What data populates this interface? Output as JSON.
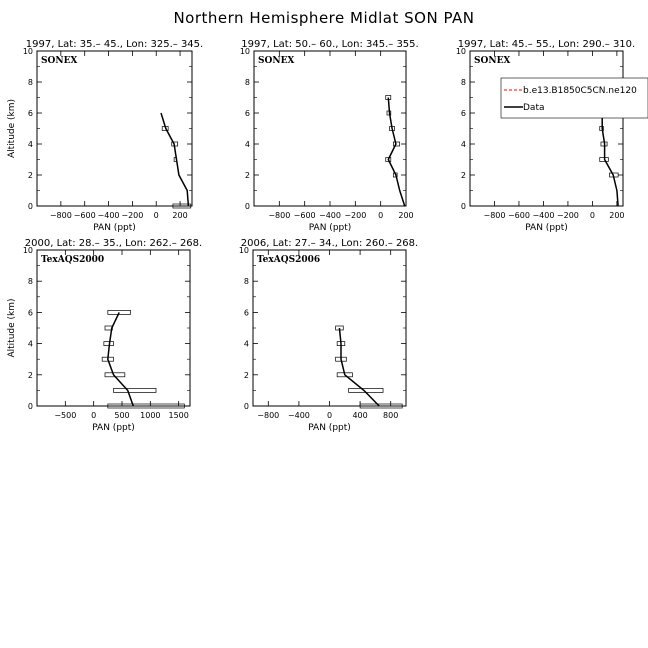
{
  "figure": {
    "title": "Northern Hemisphere Midlat SON PAN"
  },
  "legend": {
    "items": [
      {
        "label": "b.e13.B1850C5CN.ne120",
        "color": "#ff0000",
        "style": "dashed"
      },
      {
        "label": "Data",
        "color": "#000000",
        "style": "solid"
      }
    ]
  },
  "chart_data": [
    {
      "type": "line",
      "title": "1997, Lat: 35.– 45., Lon: 325.– 345.",
      "campaign": "SONEX",
      "xlabel": "PAN (ppt)",
      "ylabel": "Altitude (km)",
      "xlim": [
        -1000,
        300
      ],
      "ylim": [
        0,
        10
      ],
      "xticks": [
        -800,
        -600,
        -400,
        -200,
        0,
        200
      ],
      "xtick_labels": [
        "−800",
        "−600",
        "−400",
        "−200",
        "0",
        "200"
      ],
      "yticks": [
        0,
        2,
        4,
        6,
        8,
        10
      ],
      "show_legend": false,
      "series": [
        {
          "name": "Data",
          "points": [
            [
              270,
              0
            ],
            [
              260,
              1
            ],
            [
              190,
              2
            ],
            [
              170,
              3
            ],
            [
              150,
              4
            ],
            [
              80,
              5
            ],
            [
              40,
              6
            ]
          ]
        }
      ],
      "boxes": [
        {
          "y": 0,
          "x0": 140,
          "x1": 290
        },
        {
          "y": 3,
          "x0": 150,
          "x1": 170
        },
        {
          "y": 4,
          "x0": 130,
          "x1": 180
        },
        {
          "y": 5,
          "x0": 50,
          "x1": 100
        }
      ]
    },
    {
      "type": "line",
      "title": "1997, Lat: 50.– 60., Lon: 345.– 355.",
      "campaign": "SONEX",
      "xlabel": "PAN (ppt)",
      "ylabel": "",
      "xlim": [
        -1000,
        200
      ],
      "ylim": [
        0,
        10
      ],
      "xticks": [
        -800,
        -600,
        -400,
        -200,
        0,
        200
      ],
      "xtick_labels": [
        "−800",
        "−600",
        "−400",
        "−200",
        "0",
        "200"
      ],
      "yticks": [
        0,
        2,
        4,
        6,
        8,
        10
      ],
      "show_legend": false,
      "series": [
        {
          "name": "Data",
          "points": [
            [
              190,
              0
            ],
            [
              150,
              1
            ],
            [
              120,
              2
            ],
            [
              60,
              3
            ],
            [
              120,
              4
            ],
            [
              90,
              5
            ],
            [
              70,
              6
            ],
            [
              60,
              7
            ]
          ]
        }
      ],
      "boxes": [
        {
          "y": 2,
          "x0": 100,
          "x1": 130
        },
        {
          "y": 3,
          "x0": 40,
          "x1": 80
        },
        {
          "y": 4,
          "x0": 100,
          "x1": 150
        },
        {
          "y": 5,
          "x0": 70,
          "x1": 110
        },
        {
          "y": 6,
          "x0": 50,
          "x1": 80
        },
        {
          "y": 7,
          "x0": 40,
          "x1": 80
        }
      ]
    },
    {
      "type": "line",
      "title": "1997, Lat: 45.– 55., Lon: 290.– 310.",
      "campaign": "SONEX",
      "xlabel": "PAN (ppt)",
      "ylabel": "",
      "xlim": [
        -1000,
        250
      ],
      "ylim": [
        0,
        10
      ],
      "xticks": [
        -800,
        -600,
        -400,
        -200,
        0,
        200
      ],
      "xtick_labels": [
        "−800",
        "−600",
        "−400",
        "−200",
        "0",
        "200"
      ],
      "yticks": [
        0,
        2,
        4,
        6,
        8,
        10
      ],
      "show_legend": true,
      "series": [
        {
          "name": "Data",
          "points": [
            [
              210,
              0
            ],
            [
              200,
              1
            ],
            [
              170,
              2
            ],
            [
              100,
              3
            ],
            [
              100,
              4
            ],
            [
              80,
              5
            ],
            [
              80,
              6
            ],
            [
              70,
              7
            ],
            [
              70,
              8
            ]
          ]
        }
      ],
      "boxes": [
        {
          "y": 2,
          "x0": 140,
          "x1": 210
        },
        {
          "y": 3,
          "x0": 60,
          "x1": 130
        },
        {
          "y": 4,
          "x0": 70,
          "x1": 120
        },
        {
          "y": 5,
          "x0": 60,
          "x1": 90
        },
        {
          "y": 6,
          "x0": 50,
          "x1": 100
        },
        {
          "y": 7,
          "x0": 50,
          "x1": 90
        },
        {
          "y": 8,
          "x0": 50,
          "x1": 90
        }
      ]
    },
    {
      "type": "line",
      "title": "2000, Lat: 28.– 35., Lon: 262.– 268.",
      "campaign": "TexAQS2000",
      "xlabel": "PAN (ppt)",
      "ylabel": "Altitude (km)",
      "xlim": [
        -1000,
        1700
      ],
      "ylim": [
        0,
        10
      ],
      "xticks": [
        -500,
        0,
        500,
        1000,
        1500
      ],
      "xtick_labels": [
        "−500",
        "0",
        "500",
        "1000",
        "1500"
      ],
      "yticks": [
        0,
        2,
        4,
        6,
        8,
        10
      ],
      "show_legend": false,
      "series": [
        {
          "name": "Data",
          "points": [
            [
              700,
              0
            ],
            [
              600,
              1
            ],
            [
              350,
              2
            ],
            [
              250,
              3
            ],
            [
              280,
              4
            ],
            [
              320,
              5
            ],
            [
              450,
              6
            ]
          ]
        }
      ],
      "boxes": [
        {
          "y": 0,
          "x0": 250,
          "x1": 1600
        },
        {
          "y": 1,
          "x0": 350,
          "x1": 1100
        },
        {
          "y": 2,
          "x0": 200,
          "x1": 550
        },
        {
          "y": 3,
          "x0": 150,
          "x1": 350
        },
        {
          "y": 4,
          "x0": 180,
          "x1": 350
        },
        {
          "y": 5,
          "x0": 200,
          "x1": 330
        },
        {
          "y": 6,
          "x0": 250,
          "x1": 650
        }
      ]
    },
    {
      "type": "line",
      "title": "2006, Lat: 27.– 34., Lon: 260.– 268.",
      "campaign": "TexAQS2006",
      "xlabel": "PAN (ppt)",
      "ylabel": "",
      "xlim": [
        -1000,
        1000
      ],
      "ylim": [
        0,
        10
      ],
      "xticks": [
        -800,
        -400,
        0,
        400,
        800
      ],
      "xtick_labels": [
        "−800",
        "−400",
        "0",
        "400",
        "800"
      ],
      "yticks": [
        0,
        2,
        4,
        6,
        8,
        10
      ],
      "show_legend": false,
      "series": [
        {
          "name": "Data",
          "points": [
            [
              650,
              0
            ],
            [
              450,
              1
            ],
            [
              200,
              2
            ],
            [
              150,
              3
            ],
            [
              150,
              4
            ],
            [
              130,
              5
            ]
          ]
        }
      ],
      "boxes": [
        {
          "y": 0,
          "x0": 400,
          "x1": 950
        },
        {
          "y": 1,
          "x0": 250,
          "x1": 700
        },
        {
          "y": 2,
          "x0": 100,
          "x1": 300
        },
        {
          "y": 3,
          "x0": 80,
          "x1": 220
        },
        {
          "y": 4,
          "x0": 100,
          "x1": 200
        },
        {
          "y": 5,
          "x0": 80,
          "x1": 180
        }
      ]
    }
  ]
}
